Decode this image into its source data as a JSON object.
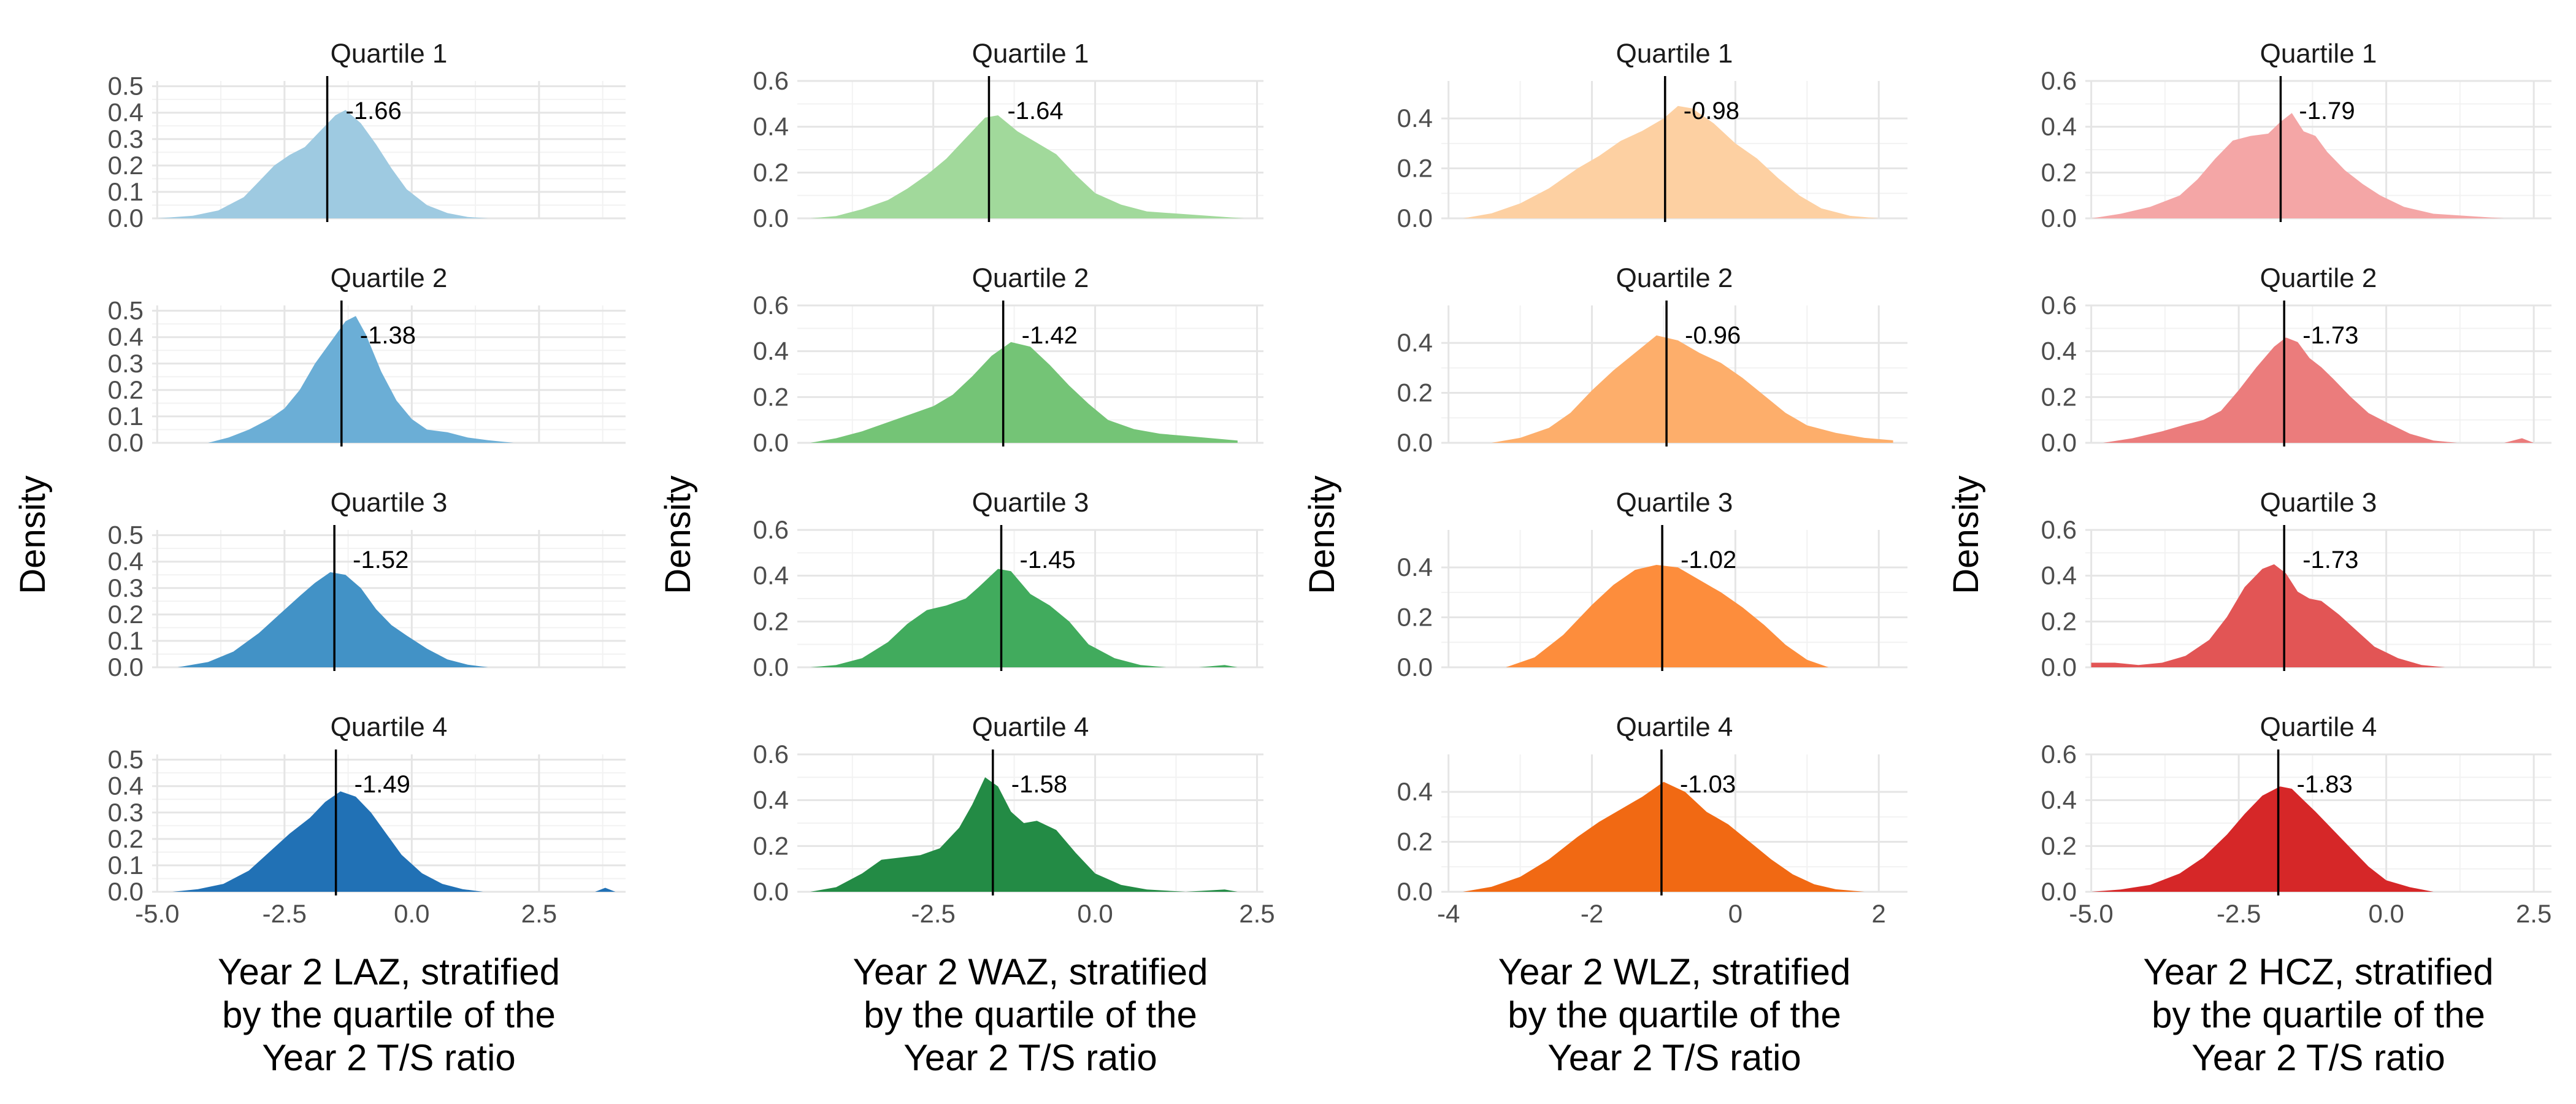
{
  "y_axis_label": "Density",
  "chart_data": [
    {
      "type": "area",
      "xlabel_lines": [
        "Year 2 LAZ, stratified",
        "by the quartile of the",
        "Year 2 T/S ratio"
      ],
      "ylabel": "Density",
      "xlim": [
        -5.1,
        4.2
      ],
      "ylim": [
        0,
        0.52
      ],
      "xticks": [
        -5.0,
        -2.5,
        0.0,
        2.5
      ],
      "xtick_labels": [
        "-5.0",
        "-2.5",
        "0.0",
        "2.5"
      ],
      "yticks": [
        0,
        0.1,
        0.2,
        0.3,
        0.4,
        0.5
      ],
      "ytick_labels": [
        "0.0",
        "0.1",
        "0.2",
        "0.3",
        "0.4",
        "0.5"
      ],
      "colors": [
        "#9ecae1",
        "#6baed6",
        "#4292c6",
        "#2171b5"
      ],
      "panels": [
        {
          "title": "Quartile 1",
          "mean": -1.66,
          "mean_label": "-1.66",
          "x": [
            -5.0,
            -4.3,
            -3.8,
            -3.3,
            -3.0,
            -2.7,
            -2.4,
            -2.1,
            -1.8,
            -1.5,
            -1.3,
            -1.0,
            -0.7,
            -0.4,
            -0.1,
            0.3,
            0.7,
            1.1,
            1.5
          ],
          "density": [
            0.0,
            0.01,
            0.03,
            0.08,
            0.14,
            0.2,
            0.24,
            0.27,
            0.33,
            0.39,
            0.41,
            0.36,
            0.28,
            0.19,
            0.11,
            0.05,
            0.02,
            0.005,
            0.0
          ]
        },
        {
          "title": "Quartile 2",
          "mean": -1.38,
          "mean_label": "-1.38",
          "x": [
            -4.0,
            -3.6,
            -3.2,
            -2.8,
            -2.5,
            -2.2,
            -1.9,
            -1.6,
            -1.3,
            -1.1,
            -0.9,
            -0.6,
            -0.3,
            0.0,
            0.3,
            0.7,
            1.1,
            1.5,
            2.0
          ],
          "density": [
            0.0,
            0.02,
            0.05,
            0.09,
            0.13,
            0.2,
            0.3,
            0.38,
            0.46,
            0.48,
            0.41,
            0.27,
            0.16,
            0.09,
            0.05,
            0.04,
            0.02,
            0.01,
            0.0
          ]
        },
        {
          "title": "Quartile 3",
          "mean": -1.52,
          "mean_label": "-1.52",
          "x": [
            -4.6,
            -4.0,
            -3.5,
            -3.0,
            -2.6,
            -2.2,
            -1.9,
            -1.6,
            -1.3,
            -1.0,
            -0.7,
            -0.4,
            -0.1,
            0.3,
            0.7,
            1.1,
            1.5
          ],
          "density": [
            0.0,
            0.02,
            0.06,
            0.13,
            0.2,
            0.27,
            0.32,
            0.36,
            0.35,
            0.3,
            0.22,
            0.16,
            0.12,
            0.07,
            0.03,
            0.01,
            0.0
          ]
        },
        {
          "title": "Quartile 4",
          "mean": -1.49,
          "mean_label": "-1.49",
          "x": [
            -4.7,
            -4.2,
            -3.7,
            -3.2,
            -2.8,
            -2.4,
            -2.0,
            -1.7,
            -1.4,
            -1.1,
            -0.8,
            -0.5,
            -0.2,
            0.2,
            0.6,
            1.0,
            1.4,
            2.0,
            3.0,
            3.6,
            3.8,
            4.0
          ],
          "density": [
            0.0,
            0.01,
            0.03,
            0.08,
            0.15,
            0.22,
            0.28,
            0.34,
            0.38,
            0.36,
            0.3,
            0.22,
            0.14,
            0.07,
            0.03,
            0.01,
            0.0,
            0.0,
            0.0,
            0.0,
            0.015,
            0.0
          ]
        }
      ]
    },
    {
      "type": "area",
      "xlabel_lines": [
        "Year 2 WAZ, stratified",
        "by the quartile of the",
        "Year 2 T/S ratio"
      ],
      "ylabel": "Density",
      "xlim": [
        -4.6,
        2.6
      ],
      "ylim": [
        0,
        0.6
      ],
      "xticks": [
        -2.5,
        0.0,
        2.5
      ],
      "xtick_labels": [
        "-2.5",
        "0.0",
        "2.5"
      ],
      "yticks": [
        0,
        0.2,
        0.4,
        0.6
      ],
      "ytick_labels": [
        "0.0",
        "0.2",
        "0.4",
        "0.6"
      ],
      "colors": [
        "#a1d99b",
        "#74c476",
        "#41ab5d",
        "#238b45"
      ],
      "panels": [
        {
          "title": "Quartile 1",
          "mean": -1.64,
          "mean_label": "-1.64",
          "x": [
            -4.4,
            -4.0,
            -3.6,
            -3.2,
            -2.9,
            -2.6,
            -2.3,
            -2.0,
            -1.7,
            -1.5,
            -1.2,
            -0.9,
            -0.6,
            -0.3,
            0.0,
            0.4,
            0.8,
            1.3,
            1.8,
            2.3
          ],
          "density": [
            0.0,
            0.01,
            0.04,
            0.08,
            0.13,
            0.19,
            0.26,
            0.35,
            0.44,
            0.45,
            0.38,
            0.33,
            0.28,
            0.19,
            0.11,
            0.06,
            0.03,
            0.02,
            0.01,
            0.0
          ]
        },
        {
          "title": "Quartile 2",
          "mean": -1.42,
          "mean_label": "-1.42",
          "x": [
            -4.4,
            -4.0,
            -3.6,
            -3.2,
            -2.8,
            -2.5,
            -2.2,
            -1.9,
            -1.6,
            -1.3,
            -1.0,
            -0.7,
            -0.4,
            -0.1,
            0.2,
            0.6,
            1.0,
            1.4,
            1.8,
            2.2
          ],
          "density": [
            0.0,
            0.02,
            0.05,
            0.09,
            0.13,
            0.16,
            0.21,
            0.29,
            0.38,
            0.44,
            0.42,
            0.34,
            0.25,
            0.17,
            0.1,
            0.06,
            0.04,
            0.03,
            0.02,
            0.01
          ]
        },
        {
          "title": "Quartile 3",
          "mean": -1.45,
          "mean_label": "-1.45",
          "x": [
            -4.4,
            -4.0,
            -3.6,
            -3.2,
            -2.9,
            -2.6,
            -2.3,
            -2.0,
            -1.8,
            -1.5,
            -1.3,
            -1.0,
            -0.7,
            -0.4,
            -0.1,
            0.3,
            0.7,
            1.1,
            1.6,
            2.0,
            2.2
          ],
          "density": [
            0.0,
            0.01,
            0.04,
            0.11,
            0.19,
            0.25,
            0.27,
            0.3,
            0.35,
            0.43,
            0.42,
            0.32,
            0.27,
            0.2,
            0.1,
            0.04,
            0.01,
            0.0,
            0.0,
            0.01,
            0.0
          ]
        },
        {
          "title": "Quartile 4",
          "mean": -1.58,
          "mean_label": "-1.58",
          "x": [
            -4.4,
            -4.0,
            -3.6,
            -3.3,
            -3.0,
            -2.7,
            -2.4,
            -2.1,
            -1.9,
            -1.7,
            -1.5,
            -1.3,
            -1.1,
            -0.9,
            -0.6,
            -0.3,
            0.0,
            0.4,
            0.8,
            1.4,
            2.0,
            2.2
          ],
          "density": [
            0.0,
            0.02,
            0.08,
            0.14,
            0.15,
            0.16,
            0.19,
            0.28,
            0.38,
            0.5,
            0.46,
            0.35,
            0.3,
            0.31,
            0.27,
            0.17,
            0.08,
            0.03,
            0.01,
            0.0,
            0.01,
            0.0
          ]
        }
      ]
    },
    {
      "type": "area",
      "xlabel_lines": [
        "Year 2 WLZ, stratified",
        "by the quartile of the",
        "Year 2 T/S ratio"
      ],
      "ylabel": "Density",
      "xlim": [
        -4.1,
        2.4
      ],
      "ylim": [
        0,
        0.55
      ],
      "xticks": [
        -4,
        -2,
        0,
        2
      ],
      "xtick_labels": [
        "-4",
        "-2",
        "0",
        "2"
      ],
      "yticks": [
        0,
        0.2,
        0.4
      ],
      "ytick_labels": [
        "0.0",
        "0.2",
        "0.4"
      ],
      "colors": [
        "#fdd0a2",
        "#fdae6b",
        "#fd8d3c",
        "#f16913"
      ],
      "panels": [
        {
          "title": "Quartile 1",
          "mean": -0.98,
          "mean_label": "-0.98",
          "x": [
            -3.8,
            -3.4,
            -3.0,
            -2.6,
            -2.2,
            -1.9,
            -1.6,
            -1.3,
            -1.0,
            -0.8,
            -0.6,
            -0.3,
            0.0,
            0.3,
            0.6,
            0.9,
            1.2,
            1.6,
            2.0
          ],
          "density": [
            0.0,
            0.02,
            0.06,
            0.12,
            0.2,
            0.25,
            0.31,
            0.35,
            0.4,
            0.45,
            0.44,
            0.38,
            0.3,
            0.24,
            0.16,
            0.09,
            0.04,
            0.01,
            0.0
          ]
        },
        {
          "title": "Quartile 2",
          "mean": -0.96,
          "mean_label": "-0.96",
          "x": [
            -3.8,
            -3.4,
            -3.0,
            -2.6,
            -2.3,
            -2.0,
            -1.7,
            -1.4,
            -1.1,
            -0.8,
            -0.5,
            -0.2,
            0.1,
            0.4,
            0.7,
            1.0,
            1.4,
            1.8,
            2.2
          ],
          "density": [
            0.0,
            0.0,
            0.02,
            0.06,
            0.12,
            0.21,
            0.29,
            0.36,
            0.43,
            0.41,
            0.36,
            0.32,
            0.26,
            0.19,
            0.12,
            0.07,
            0.04,
            0.02,
            0.01
          ]
        },
        {
          "title": "Quartile 3",
          "mean": -1.02,
          "mean_label": "-1.02",
          "x": [
            -3.2,
            -2.8,
            -2.4,
            -2.0,
            -1.7,
            -1.4,
            -1.1,
            -0.8,
            -0.5,
            -0.2,
            0.1,
            0.4,
            0.7,
            1.0,
            1.3,
            1.7,
            2.1
          ],
          "density": [
            0.0,
            0.04,
            0.13,
            0.25,
            0.33,
            0.39,
            0.41,
            0.4,
            0.35,
            0.3,
            0.24,
            0.17,
            0.09,
            0.03,
            0.0,
            0.0,
            0.0
          ]
        },
        {
          "title": "Quartile 4",
          "mean": -1.03,
          "mean_label": "-1.03",
          "x": [
            -3.8,
            -3.4,
            -3.0,
            -2.6,
            -2.2,
            -1.9,
            -1.6,
            -1.3,
            -1.0,
            -0.7,
            -0.4,
            -0.1,
            0.2,
            0.5,
            0.8,
            1.1,
            1.4,
            1.8,
            2.1
          ],
          "density": [
            0.0,
            0.02,
            0.06,
            0.13,
            0.22,
            0.28,
            0.33,
            0.38,
            0.44,
            0.4,
            0.32,
            0.27,
            0.2,
            0.13,
            0.07,
            0.03,
            0.01,
            0.0,
            0.0
          ]
        }
      ]
    },
    {
      "type": "area",
      "xlabel_lines": [
        "Year 2 HCZ, stratified",
        "by the quartile of the",
        "Year 2 T/S ratio"
      ],
      "ylabel": "Density",
      "xlim": [
        -5.1,
        2.8
      ],
      "ylim": [
        0,
        0.6
      ],
      "xticks": [
        -5.0,
        -2.5,
        0.0,
        2.5
      ],
      "xtick_labels": [
        "-5.0",
        "-2.5",
        "0.0",
        "2.5"
      ],
      "yticks": [
        0,
        0.2,
        0.4,
        0.6
      ],
      "ytick_labels": [
        "0.0",
        "0.2",
        "0.4",
        "0.6"
      ],
      "colors": [
        "#f4a6a6",
        "#eb7c7c",
        "#e25555",
        "#d62728"
      ],
      "panels": [
        {
          "title": "Quartile 1",
          "mean": -1.79,
          "mean_label": "-1.79",
          "x": [
            -5.0,
            -4.5,
            -4.0,
            -3.5,
            -3.2,
            -2.9,
            -2.6,
            -2.3,
            -2.0,
            -1.8,
            -1.6,
            -1.4,
            -1.2,
            -1.0,
            -0.7,
            -0.4,
            -0.1,
            0.3,
            0.8,
            1.4,
            2.0
          ],
          "density": [
            0.0,
            0.02,
            0.05,
            0.1,
            0.17,
            0.26,
            0.34,
            0.36,
            0.37,
            0.42,
            0.46,
            0.38,
            0.36,
            0.29,
            0.21,
            0.15,
            0.1,
            0.05,
            0.02,
            0.01,
            0.0
          ]
        },
        {
          "title": "Quartile 2",
          "mean": -1.73,
          "mean_label": "-1.73",
          "x": [
            -4.8,
            -4.3,
            -3.8,
            -3.4,
            -3.1,
            -2.8,
            -2.5,
            -2.2,
            -1.9,
            -1.7,
            -1.5,
            -1.3,
            -1.1,
            -0.9,
            -0.6,
            -0.3,
            0.0,
            0.4,
            0.8,
            1.2,
            1.6,
            2.0,
            2.3,
            2.5
          ],
          "density": [
            0.0,
            0.02,
            0.05,
            0.08,
            0.1,
            0.14,
            0.23,
            0.33,
            0.42,
            0.46,
            0.44,
            0.37,
            0.33,
            0.28,
            0.2,
            0.13,
            0.09,
            0.04,
            0.01,
            0.0,
            0.0,
            0.0,
            0.02,
            0.0
          ]
        },
        {
          "title": "Quartile 3",
          "mean": -1.73,
          "mean_label": "-1.73",
          "x": [
            -5.0,
            -4.6,
            -4.2,
            -3.8,
            -3.4,
            -3.0,
            -2.7,
            -2.4,
            -2.1,
            -1.9,
            -1.7,
            -1.5,
            -1.3,
            -1.1,
            -0.8,
            -0.5,
            -0.2,
            0.2,
            0.6,
            1.0,
            1.5,
            2.0
          ],
          "density": [
            0.02,
            0.02,
            0.01,
            0.02,
            0.05,
            0.12,
            0.22,
            0.35,
            0.43,
            0.45,
            0.41,
            0.33,
            0.3,
            0.29,
            0.23,
            0.16,
            0.09,
            0.04,
            0.01,
            0.0,
            0.0,
            0.0
          ]
        },
        {
          "title": "Quartile 4",
          "mean": -1.83,
          "mean_label": "-1.83",
          "x": [
            -5.0,
            -4.5,
            -4.0,
            -3.5,
            -3.1,
            -2.7,
            -2.4,
            -2.1,
            -1.8,
            -1.6,
            -1.4,
            -1.2,
            -0.9,
            -0.6,
            -0.3,
            0.0,
            0.4,
            0.8,
            1.2
          ],
          "density": [
            0.0,
            0.01,
            0.03,
            0.08,
            0.15,
            0.25,
            0.34,
            0.42,
            0.46,
            0.45,
            0.4,
            0.35,
            0.27,
            0.19,
            0.11,
            0.05,
            0.02,
            0.0,
            0.0
          ]
        }
      ]
    }
  ]
}
